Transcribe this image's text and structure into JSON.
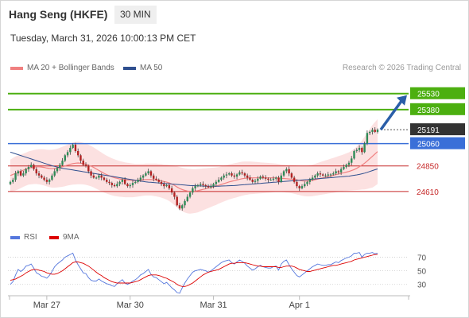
{
  "header": {
    "title": "Hang Seng (HKFE)",
    "interval": "30 MIN",
    "timestamp": "Tuesday, March 31, 2026 10:00:13 PM CET"
  },
  "legend": {
    "ma20_label": "MA 20 + Bollinger Bands",
    "ma50_label": "MA 50",
    "credit": "Research © 2026 Trading Central"
  },
  "rsi_legend": {
    "rsi_label": "RSI",
    "ma_label": "9MA"
  },
  "colors": {
    "up": "#2e8b57",
    "down": "#b22222",
    "ma20": "#f08080",
    "ma50": "#2f4f8f",
    "band_fill": "#fbd7d7",
    "resistance": "#4caf10",
    "pivot": "#3a6fd8",
    "support": "#c62828",
    "last_price": "#333333",
    "arrow": "#2a5ea8",
    "rsi": "#5577dd",
    "rsi_ma": "#dd0000"
  },
  "chart_data": [
    {
      "type": "candlestick",
      "title": "",
      "y_range": [
        24280,
        25700
      ],
      "levels": [
        {
          "value": 25530,
          "label": "25530",
          "role": "resistance",
          "style": "tag-green"
        },
        {
          "value": 25380,
          "label": "25380",
          "role": "resistance",
          "style": "tag-green"
        },
        {
          "value": 25191,
          "label": "25191",
          "role": "last-price",
          "style": "tag-dark"
        },
        {
          "value": 25060,
          "label": "25060",
          "role": "pivot",
          "style": "tag-blue"
        },
        {
          "value": 24850,
          "label": "24850",
          "role": "support",
          "style": "text-red"
        },
        {
          "value": 24610,
          "label": "24610",
          "role": "support",
          "style": "text-red"
        }
      ],
      "series": [
        {
          "name": "close",
          "values": [
            24700,
            24720,
            24780,
            24800,
            24760,
            24780,
            24820,
            24840,
            24860,
            24820,
            24780,
            24760,
            24740,
            24720,
            24700,
            24720,
            24760,
            24800,
            24830,
            24860,
            24900,
            24950,
            24980,
            25020,
            25050,
            24990,
            24950,
            24900,
            24860,
            24850,
            24800,
            24760,
            24740,
            24740,
            24760,
            24740,
            24720,
            24700,
            24690,
            24670,
            24660,
            24680,
            24700,
            24720,
            24680,
            24660,
            24670,
            24690,
            24700,
            24720,
            24740,
            24760,
            24780,
            24800,
            24760,
            24730,
            24720,
            24700,
            24680,
            24660,
            24670,
            24640,
            24600,
            24560,
            24480,
            24450,
            24480,
            24520,
            24560,
            24600,
            24640,
            24660,
            24670,
            24680,
            24670,
            24660,
            24650,
            24660,
            24680,
            24700,
            24720,
            24740,
            24760,
            24770,
            24780,
            24760,
            24750,
            24770,
            24790,
            24780,
            24760,
            24740,
            24720,
            24700,
            24710,
            24730,
            24750,
            24740,
            24730,
            24720,
            24720,
            24730,
            24740,
            24700,
            24760,
            24800,
            24820,
            24780,
            24740,
            24700,
            24660,
            24640,
            24660,
            24680,
            24700,
            24720,
            24740,
            24760,
            24780,
            24770,
            24760,
            24760,
            24770,
            24770,
            24780,
            24800,
            24790,
            24820,
            24840,
            24860,
            24880,
            24920,
            24990,
            25000,
            25020,
            24980,
            25060,
            25160,
            25170,
            25190,
            25170,
            25191
          ],
          "ohlc_note": "open values are the previous close"
        },
        {
          "name": "MA 20",
          "values": [
            24760,
            24770,
            24780,
            24790,
            24800,
            24810,
            24820,
            24830,
            24835,
            24840,
            24842,
            24842,
            24840,
            24836,
            24830,
            24826,
            24824,
            24826,
            24830,
            24836,
            24842,
            24850,
            24858,
            24866,
            24872,
            24876,
            24878,
            24876,
            24872,
            24866,
            24858,
            24848,
            24836,
            24822,
            24808,
            24794,
            24780,
            24768,
            24758,
            24748,
            24740,
            24734,
            24728,
            24724,
            24720,
            24718,
            24716,
            24714,
            24714,
            24716,
            24718,
            24720,
            24722,
            24722,
            24722,
            24720,
            24718,
            24714,
            24710,
            24704,
            24698,
            24690,
            24680,
            24668,
            24652,
            24638,
            24628,
            24620,
            24614,
            24612,
            24612,
            24614,
            24618,
            24624,
            24630,
            24636,
            24642,
            24648,
            24654,
            24660,
            24668,
            24676,
            24684,
            24692,
            24700,
            24706,
            24712,
            24718,
            24724,
            24730,
            24734,
            24736,
            24738,
            24738,
            24738,
            24738,
            24738,
            24738,
            24738,
            24738,
            24738,
            24738,
            24738,
            24736,
            24734,
            24732,
            24730,
            24728,
            24726,
            24722,
            24718,
            24714,
            24710,
            24708,
            24708,
            24710,
            24714,
            24720,
            24726,
            24732,
            24738,
            24744,
            24750,
            24756,
            24762,
            24768,
            24774,
            24780,
            24786,
            24792,
            24798,
            24806,
            24816,
            24828,
            24842,
            24858,
            24876,
            24896,
            24918,
            24940,
            24962,
            24985
          ]
        },
        {
          "name": "MA 50",
          "values": [
            24980,
            24972,
            24964,
            24956,
            24948,
            24940,
            24932,
            24924,
            24916,
            24908,
            24900,
            24892,
            24884,
            24876,
            24868,
            24860,
            24852,
            24846,
            24840,
            24834,
            24828,
            24824,
            24820,
            24816,
            24812,
            24808,
            24804,
            24800,
            24796,
            24792,
            24788,
            24784,
            24780,
            24776,
            24772,
            24768,
            24764,
            24760,
            24756,
            24752,
            24748,
            24744,
            24740,
            24736,
            24732,
            24728,
            24724,
            24720,
            24716,
            24712,
            24708,
            24704,
            24700,
            24698,
            24696,
            24694,
            24692,
            24690,
            24688,
            24686,
            24684,
            24682,
            24680,
            24678,
            24676,
            24674,
            24672,
            24670,
            24668,
            24666,
            24665,
            24664,
            24663,
            24662,
            24661,
            24660,
            24660,
            24660,
            24660,
            24660,
            24660,
            24661,
            24662,
            24663,
            24664,
            24665,
            24666,
            24668,
            24670,
            24672,
            24674,
            24676,
            24678,
            24680,
            24682,
            24684,
            24686,
            24688,
            24690,
            24692,
            24694,
            24696,
            24698,
            24700,
            24702,
            24704,
            24706,
            24708,
            24710,
            24712,
            24714,
            24716,
            24718,
            24720,
            24722,
            24724,
            24726,
            24728,
            24730,
            24732,
            24734,
            24736,
            24738,
            24740,
            24742,
            24744,
            24746,
            24748,
            24750,
            24752,
            24754,
            24758,
            24762,
            24766,
            24770,
            24776,
            24782,
            24790,
            24798,
            24806,
            24814,
            24822
          ]
        },
        {
          "name": "Bollinger width",
          "values_note": "band half-width in index points",
          "values": [
            150,
            155,
            160,
            160,
            158,
            156,
            155,
            156,
            158,
            160,
            162,
            165,
            168,
            170,
            172,
            175,
            178,
            180,
            182,
            185,
            188,
            190,
            192,
            195,
            198,
            200,
            200,
            198,
            196,
            194,
            192,
            190,
            188,
            186,
            184,
            182,
            180,
            178,
            176,
            174,
            172,
            170,
            168,
            166,
            164,
            162,
            160,
            158,
            156,
            154,
            152,
            150,
            150,
            150,
            150,
            152,
            154,
            156,
            158,
            160,
            165,
            170,
            178,
            186,
            194,
            200,
            205,
            208,
            210,
            210,
            208,
            206,
            204,
            200,
            196,
            192,
            188,
            184,
            180,
            176,
            172,
            170,
            168,
            166,
            165,
            164,
            163,
            162,
            161,
            160,
            158,
            156,
            154,
            152,
            150,
            148,
            146,
            144,
            142,
            140,
            138,
            136,
            134,
            132,
            130,
            130,
            130,
            130,
            132,
            134,
            136,
            138,
            140,
            142,
            144,
            146,
            148,
            150,
            152,
            154,
            156,
            158,
            160,
            162,
            164,
            166,
            168,
            170,
            172,
            176,
            180,
            186,
            194,
            204,
            216,
            230,
            246,
            262,
            278,
            294,
            300,
            305
          ]
        }
      ],
      "annotations": [
        {
          "type": "arrow",
          "from": 25191,
          "to": 25530,
          "direction": "up"
        }
      ]
    },
    {
      "type": "line",
      "title": "",
      "y_ticks": [
        70,
        50,
        30
      ],
      "y_range": [
        18,
        80
      ],
      "series": [
        {
          "name": "RSI",
          "values": [
            30,
            34,
            44,
            52,
            49,
            52,
            57,
            58,
            60,
            54,
            47,
            45,
            42,
            41,
            39,
            43,
            49,
            56,
            60,
            63,
            66,
            70,
            72,
            74,
            76,
            66,
            59,
            53,
            47,
            46,
            40,
            36,
            35,
            35,
            38,
            35,
            33,
            31,
            30,
            28,
            27,
            31,
            34,
            37,
            32,
            30,
            32,
            35,
            37,
            40,
            44,
            46,
            49,
            52,
            45,
            41,
            40,
            37,
            34,
            31,
            33,
            29,
            25,
            22,
            18,
            17,
            25,
            32,
            38,
            43,
            48,
            50,
            51,
            52,
            51,
            50,
            48,
            50,
            53,
            56,
            59,
            62,
            64,
            65,
            66,
            62,
            60,
            63,
            66,
            64,
            61,
            57,
            54,
            51,
            53,
            56,
            58,
            56,
            55,
            54,
            54,
            56,
            57,
            51,
            60,
            64,
            66,
            59,
            53,
            48,
            43,
            41,
            44,
            47,
            50,
            53,
            56,
            58,
            60,
            59,
            58,
            58,
            59,
            59,
            61,
            63,
            62,
            65,
            67,
            69,
            70,
            72,
            76,
            76,
            77,
            70,
            74,
            76,
            76,
            77,
            75,
            76
          ]
        },
        {
          "name": "9MA",
          "values": [
            36,
            37,
            38,
            40,
            42,
            44,
            47,
            49,
            51,
            52,
            52,
            51,
            50,
            49,
            47,
            46,
            45,
            45,
            46,
            48,
            50,
            53,
            56,
            59,
            62,
            63,
            63,
            62,
            61,
            59,
            57,
            54,
            51,
            48,
            45,
            43,
            40,
            38,
            36,
            34,
            33,
            32,
            32,
            32,
            32,
            32,
            32,
            33,
            34,
            35,
            37,
            39,
            41,
            43,
            44,
            44,
            44,
            43,
            42,
            40,
            39,
            37,
            35,
            33,
            30,
            28,
            27,
            27,
            28,
            30,
            32,
            35,
            38,
            41,
            44,
            46,
            48,
            49,
            50,
            51,
            52,
            54,
            56,
            58,
            60,
            61,
            61,
            62,
            62,
            62,
            62,
            61,
            60,
            59,
            58,
            57,
            57,
            56,
            56,
            56,
            56,
            56,
            56,
            55,
            55,
            56,
            57,
            57,
            57,
            56,
            54,
            52,
            51,
            50,
            49,
            49,
            50,
            51,
            52,
            53,
            54,
            55,
            56,
            57,
            58,
            58,
            59,
            60,
            61,
            62,
            63,
            64,
            66,
            67,
            68,
            69,
            70,
            71,
            72,
            73,
            74,
            74
          ]
        }
      ]
    }
  ],
  "x_axis": {
    "labels": [
      "Mar 27",
      "Mar 30",
      "Mar 31",
      "Apr 1"
    ],
    "label_index": [
      14,
      46,
      78,
      111
    ]
  }
}
